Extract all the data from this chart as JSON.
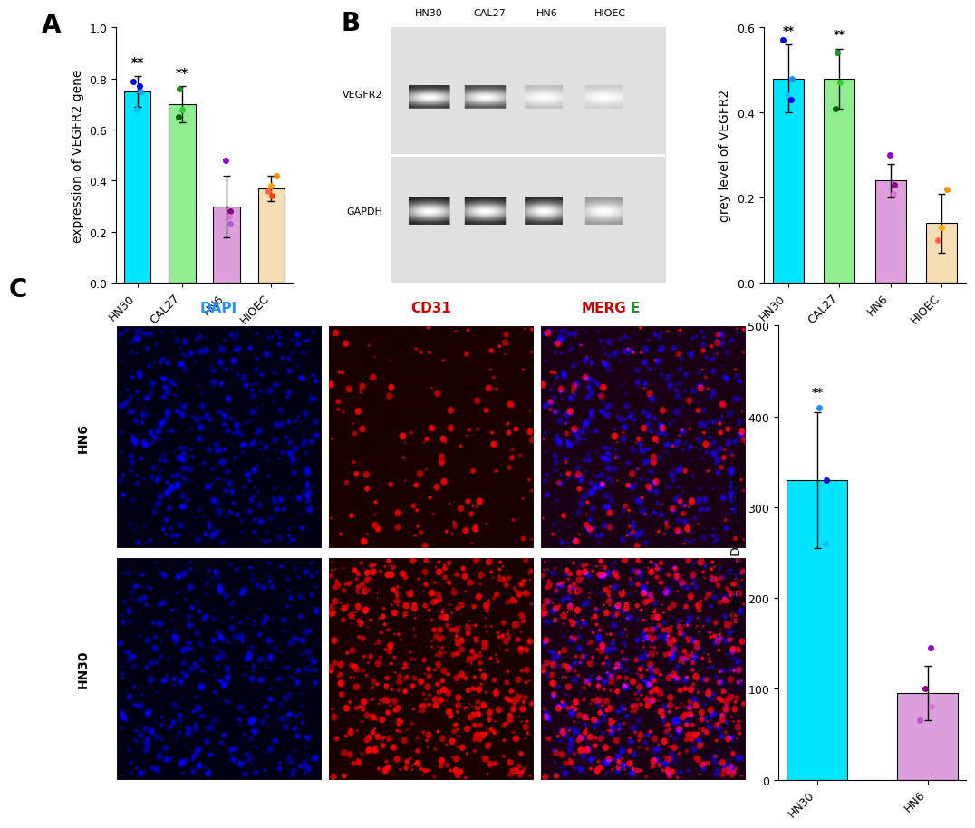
{
  "panel_A": {
    "categories": [
      "HN30",
      "CAL27",
      "HN6",
      "HIOEC"
    ],
    "means": [
      0.75,
      0.7,
      0.3,
      0.37
    ],
    "errors": [
      0.06,
      0.07,
      0.12,
      0.05
    ],
    "bar_colors": [
      "#00E5FF",
      "#90EE90",
      "#DDA0DD",
      "#F5DEB3"
    ],
    "dot_colors_per_bar": [
      [
        "#0000CD",
        "#1E90FF",
        "#00BFFF",
        "#0000FF"
      ],
      [
        "#228B22",
        "#32CD32",
        "#006400"
      ],
      [
        "#9400D3",
        "#8B008B",
        "#DA70D6",
        "#BA55D3"
      ],
      [
        "#FF8C00",
        "#FFA500",
        "#FF6347",
        "#FF4500"
      ]
    ],
    "dot_values_per_bar": [
      [
        0.79,
        0.75,
        0.68,
        0.77
      ],
      [
        0.76,
        0.68,
        0.65
      ],
      [
        0.48,
        0.28,
        0.26,
        0.23
      ],
      [
        0.42,
        0.38,
        0.36,
        0.34
      ]
    ],
    "significance": [
      "**",
      "**",
      "",
      ""
    ],
    "ylabel": "expression of VEGFR2 gene",
    "ylim": [
      0.0,
      1.0
    ],
    "yticks": [
      0.0,
      0.2,
      0.4,
      0.6,
      0.8,
      1.0
    ]
  },
  "panel_B_bar": {
    "categories": [
      "HN30",
      "CAL27",
      "HN6",
      "HIOEC"
    ],
    "means": [
      0.48,
      0.48,
      0.24,
      0.14
    ],
    "errors": [
      0.08,
      0.07,
      0.04,
      0.07
    ],
    "bar_colors": [
      "#00E5FF",
      "#90EE90",
      "#DDA0DD",
      "#F5DEB3"
    ],
    "dot_colors_per_bar": [
      [
        "#0000CD",
        "#1E90FF",
        "#00BFFF",
        "#0000FF"
      ],
      [
        "#228B22",
        "#32CD32",
        "#006400"
      ],
      [
        "#9400D3",
        "#8B008B",
        "#DA70D6"
      ],
      [
        "#FF8C00",
        "#FFA500",
        "#FF6347"
      ]
    ],
    "dot_values_per_bar": [
      [
        0.57,
        0.48,
        0.44,
        0.43
      ],
      [
        0.54,
        0.47,
        0.41
      ],
      [
        0.3,
        0.23,
        0.21
      ],
      [
        0.22,
        0.13,
        0.1
      ]
    ],
    "significance": [
      "**",
      "**",
      "",
      ""
    ],
    "ylabel": "grey level of VEGFR2",
    "ylim": [
      0.0,
      0.6
    ],
    "yticks": [
      0.0,
      0.2,
      0.4,
      0.6
    ]
  },
  "panel_C_bar": {
    "categories": [
      "HN30",
      "HN6"
    ],
    "means": [
      330,
      95
    ],
    "errors": [
      75,
      30
    ],
    "bar_colors": [
      "#00E5FF",
      "#DDA0DD"
    ],
    "dot_colors_per_bar": [
      [
        "#1E90FF",
        "#0000CD",
        "#00BFFF"
      ],
      [
        "#9400D3",
        "#8B008B",
        "#DA70D6",
        "#BA55D3"
      ]
    ],
    "dot_values_per_bar": [
      [
        410,
        330,
        260
      ],
      [
        145,
        100,
        80,
        65
      ]
    ],
    "significance": [
      "**",
      ""
    ],
    "ylabel": "number of CD31+ puncta",
    "ylim": [
      0,
      500
    ],
    "yticks": [
      0,
      100,
      200,
      300,
      400,
      500
    ]
  },
  "background_color": "#FFFFFF",
  "panel_label_fontsize": 20,
  "axis_label_fontsize": 10,
  "tick_fontsize": 9
}
